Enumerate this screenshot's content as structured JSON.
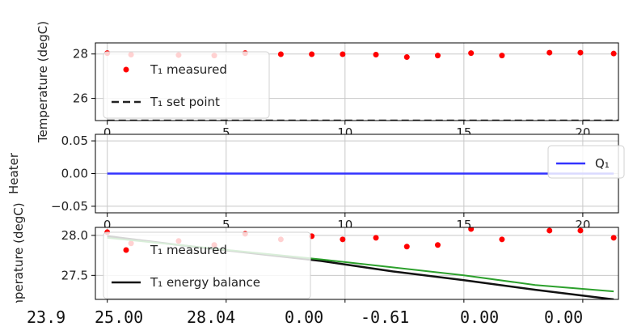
{
  "chart_data": [
    {
      "type": "scatter",
      "ylabel": "Temperature (degC)",
      "ylim": [
        25.0,
        28.5
      ],
      "xlim": [
        -0.5,
        21.5
      ],
      "xticks": [
        0,
        5,
        10,
        15,
        20
      ],
      "yticks": [
        26,
        28
      ],
      "ytick_labels": [
        "26",
        "28"
      ],
      "grid": true,
      "legend_position": "lower-left",
      "series": [
        {
          "name": "T₁ measured",
          "style": "red-dots",
          "x": [
            0.0,
            1.0,
            3.0,
            4.5,
            5.8,
            7.3,
            8.6,
            9.9,
            11.3,
            12.6,
            13.9,
            15.3,
            16.6,
            18.6,
            19.9,
            21.3
          ],
          "y": [
            28.04,
            27.97,
            27.95,
            27.93,
            28.04,
            27.99,
            27.99,
            27.99,
            27.97,
            27.86,
            27.93,
            28.04,
            27.93,
            28.06,
            28.06,
            28.02
          ]
        },
        {
          "name": "T₁ set point",
          "style": "dashed-black",
          "x": [
            0,
            21.5
          ],
          "y": [
            25.0,
            25.0
          ]
        }
      ]
    },
    {
      "type": "line",
      "ylabel": "Heater",
      "ylim": [
        -0.06,
        0.06
      ],
      "xlim": [
        -0.5,
        21.5
      ],
      "xticks": [
        0,
        5,
        10,
        15,
        20
      ],
      "yticks": [
        -0.05,
        0.0,
        0.05
      ],
      "ytick_labels": [
        "−0.05",
        "0.00",
        "0.05"
      ],
      "grid": true,
      "legend_position": "right",
      "series": [
        {
          "name": "Q₁",
          "style": "blue-line",
          "x": [
            0,
            21.3
          ],
          "y": [
            0.0,
            0.0
          ]
        }
      ]
    },
    {
      "type": "line",
      "ylabel": "Temperature (degC)",
      "ylim": [
        27.2,
        28.1
      ],
      "xlim": [
        -0.5,
        21.5
      ],
      "xticks": [
        0,
        5,
        10,
        15,
        20
      ],
      "yticks": [
        27.5,
        28.0
      ],
      "ytick_labels": [
        "27.5",
        "28.0"
      ],
      "grid": true,
      "legend_position": "lower-left",
      "series": [
        {
          "name": "T₁ measured",
          "style": "red-dots",
          "x": [
            0.0,
            1.0,
            3.0,
            4.5,
            5.8,
            7.3,
            8.6,
            9.9,
            11.3,
            12.6,
            13.9,
            15.3,
            16.6,
            18.6,
            19.9,
            21.3
          ],
          "y": [
            28.04,
            27.9,
            27.93,
            27.88,
            28.02,
            27.95,
            27.99,
            27.95,
            27.97,
            27.86,
            27.88,
            28.08,
            27.95,
            28.06,
            28.06,
            27.97
          ]
        },
        {
          "name": "T₁ energy balance",
          "style": "black-line",
          "x": [
            0,
            3,
            6,
            9,
            12,
            15,
            18,
            21.3
          ],
          "y": [
            27.99,
            27.88,
            27.78,
            27.68,
            27.55,
            27.44,
            27.32,
            27.2
          ]
        },
        {
          "name": "",
          "style": "green-line",
          "x": [
            0,
            3,
            6,
            9,
            12,
            15,
            18,
            21.3
          ],
          "y": [
            27.97,
            27.88,
            27.79,
            27.7,
            27.6,
            27.5,
            27.38,
            27.3
          ]
        }
      ]
    }
  ],
  "status_values": [
    "23.9",
    "25.00",
    "28.04",
    "0.00",
    "-0.61",
    "0.00",
    "0.00"
  ],
  "colors": {
    "measured": "#ff0000",
    "setpoint": "#222222",
    "heater": "#3333ff",
    "energy_balance": "#111111",
    "model": "#2ca02c",
    "grid": "#c8c8c8",
    "frame": "#000000"
  }
}
